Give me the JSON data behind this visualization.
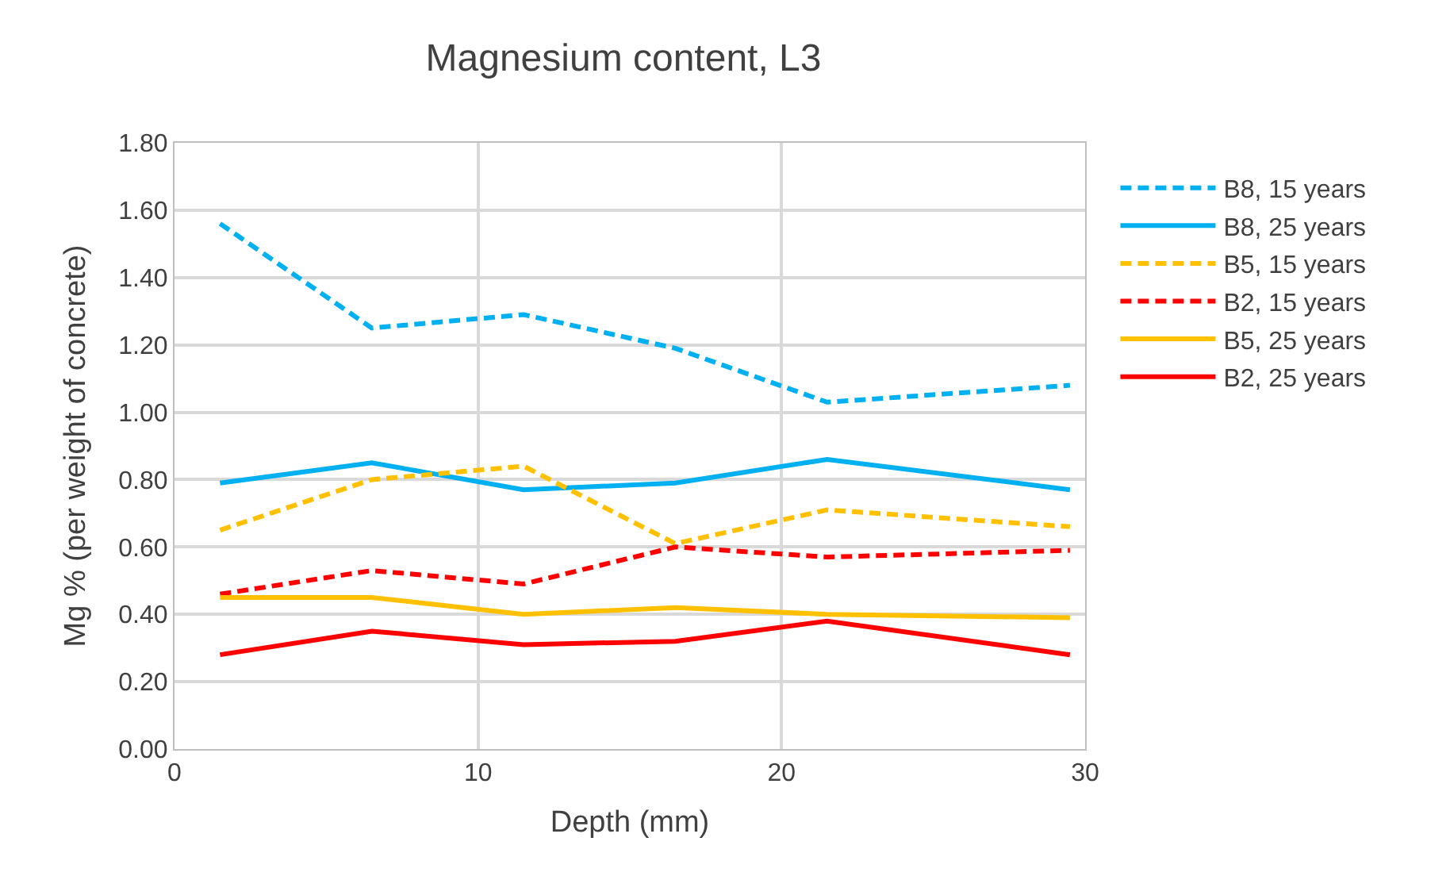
{
  "chart_data": {
    "type": "line",
    "title": "Magnesium content, L3",
    "xlabel": "Depth (mm)",
    "ylabel": "Mg % (per weight of concrete)",
    "x": [
      1.5,
      6.5,
      11.5,
      16.5,
      21.5,
      29.5
    ],
    "series": [
      {
        "name": "B8, 15 years",
        "color": "#00b0f0",
        "line_style": "dashed",
        "values": [
          1.56,
          1.25,
          1.29,
          1.19,
          1.03,
          1.08
        ]
      },
      {
        "name": "B8, 25 years",
        "color": "#00b0f0",
        "line_style": "solid",
        "values": [
          0.79,
          0.85,
          0.77,
          0.79,
          0.86,
          0.77
        ]
      },
      {
        "name": "B5, 15 years",
        "color": "#ffc000",
        "line_style": "dashed",
        "values": [
          0.65,
          0.8,
          0.84,
          0.61,
          0.71,
          0.66
        ]
      },
      {
        "name": "B2, 15 years",
        "color": "#ff0000",
        "line_style": "dashed",
        "values": [
          0.46,
          0.53,
          0.49,
          0.6,
          0.57,
          0.59
        ]
      },
      {
        "name": "B5, 25 years",
        "color": "#ffc000",
        "line_style": "solid",
        "values": [
          0.45,
          0.45,
          0.4,
          0.42,
          0.4,
          0.39
        ]
      },
      {
        "name": "B2, 25 years",
        "color": "#ff0000",
        "line_style": "solid",
        "values": [
          0.28,
          0.35,
          0.31,
          0.32,
          0.38,
          0.28
        ]
      }
    ],
    "xlim": [
      0,
      30
    ],
    "xticks": [
      0,
      10,
      20,
      30
    ],
    "ylim": [
      0,
      1.8
    ],
    "yticks": [
      {
        "value": 0,
        "label": "0.00"
      },
      {
        "value": 0.2,
        "label": "0.20"
      },
      {
        "value": 0.4,
        "label": "0.40"
      },
      {
        "value": 0.6,
        "label": "0.60"
      },
      {
        "value": 0.8,
        "label": "0.80"
      },
      {
        "value": 1.0,
        "label": "1.00"
      },
      {
        "value": 1.2,
        "label": "1.20"
      },
      {
        "value": 1.4,
        "label": "1.40"
      },
      {
        "value": 1.6,
        "label": "1.60"
      },
      {
        "value": 1.8,
        "label": "1.80"
      }
    ],
    "grid": true,
    "legend": "right",
    "marker": "none"
  }
}
